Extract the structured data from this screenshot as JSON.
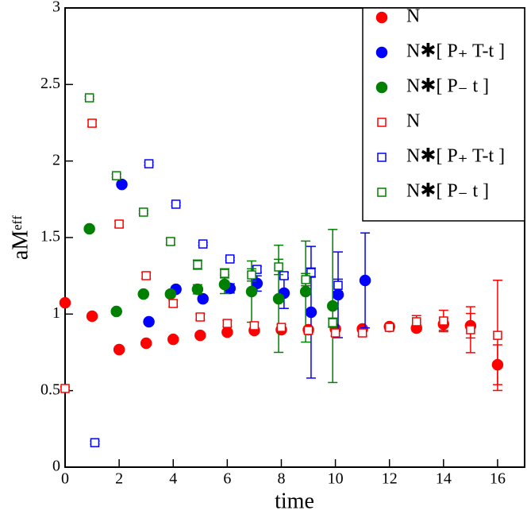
{
  "chart_data": {
    "type": "scatter",
    "x_label": "time",
    "y_label": "aMᵉᶠᶠ",
    "xlim": [
      0,
      17
    ],
    "ylim": [
      0,
      3
    ],
    "xticks": [
      0,
      2,
      4,
      6,
      8,
      10,
      12,
      14,
      16
    ],
    "yticks": [
      0,
      0.5,
      1,
      1.5,
      2,
      2.5,
      3
    ],
    "legend": "top-right",
    "series": [
      {
        "name": "N",
        "color": "#ff0000",
        "marker": "circle",
        "filled": true,
        "x": [
          0,
          1,
          2,
          3,
          4,
          5,
          6,
          7,
          8,
          9,
          10,
          11,
          12,
          13,
          14,
          15,
          16
        ],
        "values": [
          1.074,
          0.986,
          0.768,
          0.81,
          0.835,
          0.861,
          0.882,
          0.893,
          0.898,
          0.898,
          0.903,
          0.903,
          0.918,
          0.908,
          0.934,
          0.924,
          0.669
        ],
        "errors": [
          0.01,
          0.01,
          0.01,
          0.01,
          0.01,
          0.01,
          0.01,
          0.01,
          0.01,
          0.01,
          0.01,
          0.01,
          0.02,
          0.02,
          0.04,
          0.08,
          0.13
        ]
      },
      {
        "name": "N✱[ P₊ T-t ]",
        "color": "#0000ff",
        "marker": "circle",
        "filled": true,
        "x": [
          2.1,
          3.1,
          4.1,
          5.1,
          6.1,
          7.1,
          8.1,
          9.1,
          10.1,
          11.1
        ],
        "values": [
          1.847,
          0.95,
          1.162,
          1.1,
          1.168,
          1.2,
          1.137,
          1.012,
          1.126,
          1.22
        ],
        "errors": [
          0.01,
          0.01,
          0.02,
          0.02,
          0.03,
          0.05,
          0.1,
          0.43,
          0.28,
          0.31
        ]
      },
      {
        "name": "N✱[ P₋ t ]",
        "color": "#008000",
        "marker": "circle",
        "filled": true,
        "x": [
          0.9,
          1.9,
          2.9,
          3.9,
          4.9,
          5.9,
          6.9,
          7.9,
          8.9,
          9.9
        ],
        "values": [
          1.557,
          1.017,
          1.131,
          1.131,
          1.162,
          1.194,
          1.147,
          1.1,
          1.147,
          1.053
        ],
        "errors": [
          0.01,
          0.01,
          0.01,
          0.02,
          0.03,
          0.06,
          0.2,
          0.35,
          0.33,
          0.5
        ]
      },
      {
        "name": "N",
        "color": "#ff0000",
        "marker": "square",
        "filled": false,
        "x": [
          0,
          1,
          2,
          3,
          4,
          5,
          6,
          7,
          8,
          9,
          10,
          11,
          12,
          13,
          14,
          15,
          16
        ],
        "values": [
          0.514,
          2.247,
          1.588,
          1.251,
          1.069,
          0.981,
          0.939,
          0.924,
          0.913,
          0.893,
          0.877,
          0.877,
          0.913,
          0.95,
          0.955,
          0.898,
          0.861
        ],
        "errors": [
          0.01,
          0.02,
          0.02,
          0.02,
          0.02,
          0.02,
          0.02,
          0.02,
          0.02,
          0.02,
          0.02,
          0.02,
          0.02,
          0.04,
          0.07,
          0.15,
          0.36
        ]
      },
      {
        "name": "N✱[ P₊ T-t ]",
        "color": "#0000ff",
        "marker": "square",
        "filled": false,
        "x": [
          1.1,
          3.1,
          4.1,
          5.1,
          6.1,
          7.1,
          8.1,
          9.1,
          10.1
        ],
        "values": [
          0.16,
          1.982,
          1.718,
          1.458,
          1.36,
          1.292,
          1.251,
          1.271,
          1.188
        ],
        "errors": [
          0.01,
          0.01,
          0.01,
          0.01,
          0.01,
          0.02,
          0.02,
          0.03,
          0.04
        ]
      },
      {
        "name": "N✱[ P₋ t ]",
        "color": "#008000",
        "marker": "square",
        "filled": false,
        "x": [
          0.9,
          1.9,
          2.9,
          3.9,
          4.9,
          5.9,
          6.9,
          7.9,
          8.9,
          9.9
        ],
        "values": [
          2.413,
          1.904,
          1.666,
          1.474,
          1.323,
          1.266,
          1.256,
          1.308,
          1.225,
          0.944
        ],
        "errors": [
          0.01,
          0.01,
          0.01,
          0.02,
          0.03,
          0.03,
          0.04,
          0.05,
          0.04,
          0.03
        ]
      }
    ]
  }
}
